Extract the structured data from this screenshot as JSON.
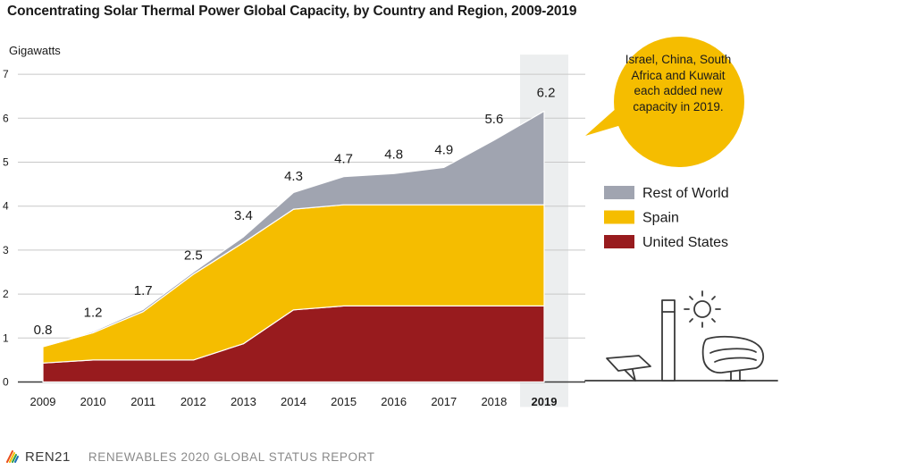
{
  "title": "Concentrating Solar Thermal Power Global Capacity, by Country and Region, 2009-2019",
  "callout": "Israel, China, South Africa and Kuwait each added new capacity in 2019.",
  "footer": {
    "logo": "REN21",
    "report": "RENEWABLES 2020 GLOBAL STATUS REPORT"
  },
  "colors": {
    "rest_of_world": "#a0a4b0",
    "spain": "#f5bd00",
    "united_states": "#981b1e",
    "highlight": "#eceeef",
    "callout": "#f5bd00"
  },
  "chart_data": {
    "type": "area",
    "stacked": true,
    "ylabel": "Gigawatts",
    "ylim": [
      0,
      7
    ],
    "yticks": [
      0,
      1,
      2,
      3,
      4,
      5,
      6,
      7
    ],
    "x": [
      "2009",
      "2010",
      "2011",
      "2012",
      "2013",
      "2014",
      "2015",
      "2016",
      "2017",
      "2018",
      "2019"
    ],
    "highlight_category": "2019",
    "totals": [
      "0.8",
      "1.2",
      "1.7",
      "2.5",
      "3.4",
      "4.3",
      "4.7",
      "4.8",
      "4.9",
      "5.6",
      "6.2"
    ],
    "series": [
      {
        "name": "United States",
        "values": [
          0.43,
          0.5,
          0.5,
          0.5,
          0.87,
          1.64,
          1.73,
          1.73,
          1.73,
          1.73,
          1.73
        ]
      },
      {
        "name": "Spain",
        "values": [
          0.37,
          0.62,
          1.1,
          1.95,
          2.3,
          2.29,
          2.3,
          2.3,
          2.3,
          2.3,
          2.3
        ]
      },
      {
        "name": "Rest of World",
        "values": [
          0.0,
          0.03,
          0.05,
          0.05,
          0.13,
          0.38,
          0.64,
          0.71,
          0.85,
          1.47,
          2.13
        ]
      }
    ],
    "legend": [
      "Rest of World",
      "Spain",
      "United States"
    ],
    "legend_position": "right",
    "grid": true
  }
}
